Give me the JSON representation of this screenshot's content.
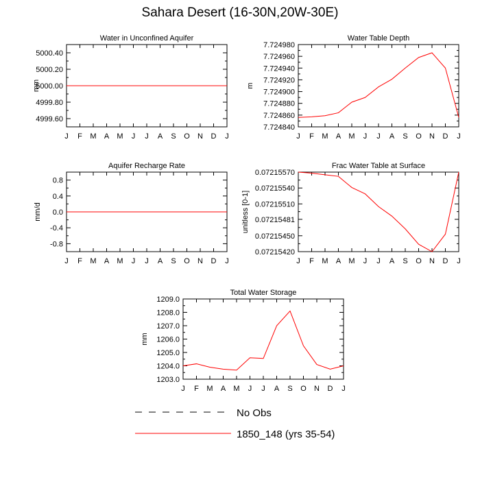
{
  "title": "Sahara Desert (16-30N,20W-30E)",
  "legend": {
    "obs_label": "No Obs",
    "model_label": "1850_148 (yrs 35-54)",
    "model_color": "#ff0000",
    "obs_color": "#000000"
  },
  "chart_data": [
    {
      "id": "unconfined",
      "type": "line",
      "title": "Water in Unconfined Aquifer",
      "ylabel": "mm",
      "categories": [
        "J",
        "F",
        "M",
        "A",
        "M",
        "J",
        "J",
        "A",
        "S",
        "O",
        "N",
        "D",
        "J"
      ],
      "ylim": [
        4999.5,
        5000.5
      ],
      "yticks": [
        4999.6,
        4999.8,
        5000.0,
        5000.2,
        5000.4
      ],
      "ytick_labels": [
        "4999.60",
        "4999.80",
        "5000.00",
        "5000.20",
        "5000.40"
      ],
      "series": [
        {
          "name": "1850_148 (yrs 35-54)",
          "values": [
            5000.0,
            5000.0,
            5000.0,
            5000.0,
            5000.0,
            5000.0,
            5000.0,
            5000.0,
            5000.0,
            5000.0,
            5000.0,
            5000.0,
            5000.0
          ]
        }
      ]
    },
    {
      "id": "wtd",
      "type": "line",
      "title": "Water Table Depth",
      "ylabel": "m",
      "categories": [
        "J",
        "F",
        "M",
        "A",
        "M",
        "J",
        "J",
        "A",
        "S",
        "O",
        "N",
        "D",
        "J"
      ],
      "ylim": [
        7.72484,
        7.72498
      ],
      "yticks": [
        7.72484,
        7.72486,
        7.72488,
        7.7249,
        7.72492,
        7.72494,
        7.72496,
        7.72498
      ],
      "ytick_labels": [
        "7.724840",
        "7.724860",
        "7.724880",
        "7.724900",
        "7.724920",
        "7.724940",
        "7.724960",
        "7.724980"
      ],
      "series": [
        {
          "name": "1850_148 (yrs 35-54)",
          "values": [
            7.724856,
            7.724857,
            7.724859,
            7.724864,
            7.724882,
            7.72489,
            7.724908,
            7.724921,
            7.72494,
            7.724958,
            7.724966,
            7.72494,
            7.724856
          ]
        }
      ]
    },
    {
      "id": "recharge",
      "type": "line",
      "title": "Aquifer Recharge Rate",
      "ylabel": "mm/d",
      "categories": [
        "J",
        "F",
        "M",
        "A",
        "M",
        "J",
        "J",
        "A",
        "S",
        "O",
        "N",
        "D",
        "J"
      ],
      "ylim": [
        -1.0,
        1.0
      ],
      "yticks": [
        -0.8,
        -0.4,
        0.0,
        0.4,
        0.8
      ],
      "ytick_labels": [
        "-0.8",
        "-0.4",
        "0.0",
        "0.4",
        "0.8"
      ],
      "series": [
        {
          "name": "1850_148 (yrs 35-54)",
          "values": [
            0,
            0,
            0,
            0,
            0,
            0,
            0,
            0,
            0,
            0,
            0,
            0,
            0
          ]
        }
      ]
    },
    {
      "id": "frac",
      "type": "line",
      "title": "Frac Water Table at Surface",
      "ylabel": "unitless [0-1]",
      "categories": [
        "J",
        "F",
        "M",
        "A",
        "M",
        "J",
        "J",
        "A",
        "S",
        "O",
        "N",
        "D",
        "J"
      ],
      "ylim": [
        0.0721542,
        0.0721557
      ],
      "yticks": [
        0.0721542,
        0.0721545,
        0.07215481,
        0.0721551,
        0.0721554,
        0.0721557
      ],
      "ytick_labels": [
        "0.07215420",
        "0.07215450",
        "0.07215481",
        "0.07215510",
        "0.07215540",
        "0.07215570"
      ],
      "series": [
        {
          "name": "1850_148 (yrs 35-54)",
          "values": [
            0.0721557,
            0.07215568,
            0.07215565,
            0.07215562,
            0.07215541,
            0.07215529,
            0.07215505,
            0.07215487,
            0.07215463,
            0.07215434,
            0.0721542,
            0.07215453,
            0.0721557
          ]
        }
      ]
    },
    {
      "id": "tws",
      "type": "line",
      "title": "Total Water Storage",
      "ylabel": "mm",
      "categories": [
        "J",
        "F",
        "M",
        "A",
        "M",
        "J",
        "J",
        "A",
        "S",
        "O",
        "N",
        "D",
        "J"
      ],
      "ylim": [
        1203.0,
        1209.0
      ],
      "yticks": [
        1203,
        1204,
        1205,
        1206,
        1207,
        1208,
        1209
      ],
      "ytick_labels": [
        "1203.0",
        "1204.0",
        "1205.0",
        "1206.0",
        "1207.0",
        "1208.0",
        "1209.0"
      ],
      "series": [
        {
          "name": "1850_148 (yrs 35-54)",
          "values": [
            1204.0,
            1204.15,
            1203.9,
            1203.75,
            1203.68,
            1204.6,
            1204.55,
            1207.0,
            1208.1,
            1205.5,
            1204.1,
            1203.75,
            1204.0
          ]
        }
      ]
    }
  ]
}
